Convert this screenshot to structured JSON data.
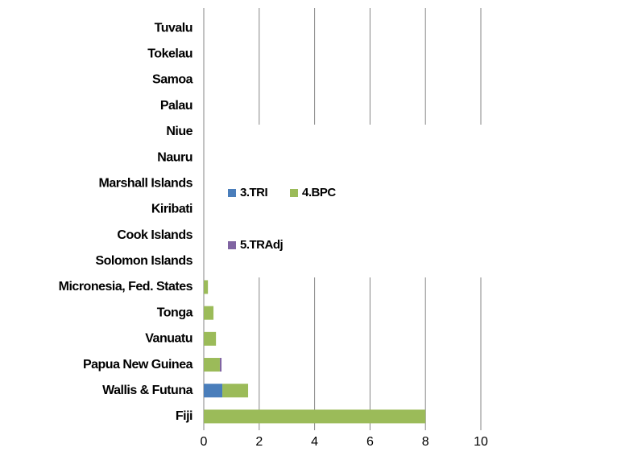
{
  "chart_data": {
    "type": "stacked_barh",
    "categories": [
      "Tuvalu",
      "Tokelau",
      "Samoa",
      "Palau",
      "Niue",
      "Nauru",
      "Marshall Islands",
      "Kiribati",
      "Cook Islands",
      "Solomon Islands",
      "Micronesia, Fed. States",
      "Tonga",
      "Vanuatu",
      "Papua New Guinea",
      "Wallis & Futuna",
      "Fiji"
    ],
    "series": [
      {
        "name": "3.TRI",
        "color": "#4a7ebb",
        "values": [
          0,
          0,
          0,
          0,
          0,
          0,
          0,
          0,
          0,
          0,
          0,
          0,
          0,
          0,
          0.67,
          0
        ]
      },
      {
        "name": "4.BPC",
        "color": "#9bbb59",
        "values": [
          0,
          0,
          0,
          0,
          0,
          0,
          0,
          0,
          0,
          0,
          0.15,
          0.35,
          0.44,
          0.58,
          0.93,
          8
        ]
      },
      {
        "name": "5.TRAdj",
        "color": "#8064a2",
        "values": [
          0,
          0,
          0,
          0,
          0,
          0,
          0,
          0,
          0,
          0,
          0,
          0,
          0,
          0.06,
          0,
          0
        ]
      }
    ],
    "xlim": [
      0,
      10
    ],
    "xticks": [
      0,
      2,
      4,
      6,
      8,
      10
    ],
    "grid": true,
    "legend": "right"
  }
}
